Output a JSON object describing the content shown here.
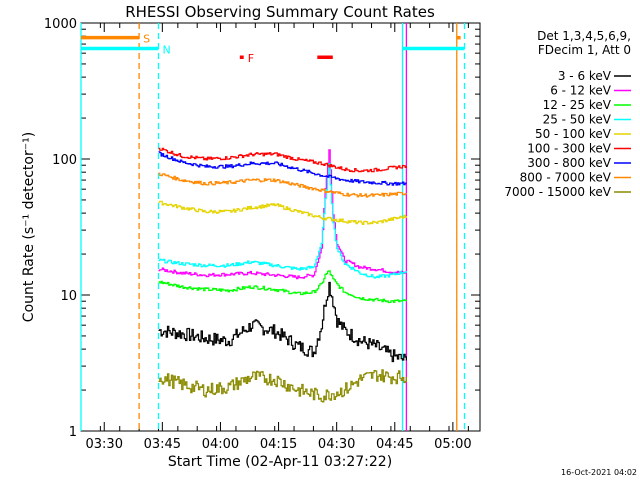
{
  "chart_data": {
    "type": "line",
    "title": "RHESSI Observing Summary Count Rates",
    "xlabel": "Start Time (02-Apr-11 03:27:22)",
    "ylabel": "Count Rate (s⁻¹ detector⁻¹)",
    "y_scale": "log",
    "ylim": [
      1,
      1000
    ],
    "xlim": [
      "03:24",
      "05:07"
    ],
    "x_ticks": [
      "03:30",
      "03:45",
      "04:00",
      "04:15",
      "04:30",
      "04:45",
      "05:00"
    ],
    "y_ticks": [
      {
        "value": 1,
        "label": "1"
      },
      {
        "value": 10,
        "label": "10"
      },
      {
        "value": 100,
        "label": "100"
      },
      {
        "value": 1000,
        "label": "1000"
      }
    ],
    "legend_header": [
      "Det 1,3,4,5,6,9,",
      "FDecim 1, Att 0"
    ],
    "legend_position": "right",
    "data_interval": [
      "03:44",
      "04:48"
    ],
    "series": [
      {
        "name": "3 - 6 keV",
        "color": "#000000",
        "x": [
          "03:44",
          "03:50",
          "03:56",
          "04:02",
          "04:08",
          "04:14",
          "04:20",
          "04:24",
          "04:26",
          "04:27",
          "04:28",
          "04:29",
          "04:30",
          "04:32",
          "04:36",
          "04:40",
          "04:44",
          "04:48"
        ],
        "y": [
          5.5,
          5.2,
          4.8,
          4.6,
          6.0,
          5.4,
          4.2,
          3.8,
          6.0,
          9.0,
          12.0,
          9.0,
          6.5,
          5.5,
          4.6,
          4.2,
          3.6,
          3.3
        ]
      },
      {
        "name": "6 - 12 keV",
        "color": "#ff00ff",
        "x": [
          "03:44",
          "03:50",
          "03:56",
          "04:02",
          "04:08",
          "04:14",
          "04:20",
          "04:24",
          "04:26",
          "04:27",
          "04:28",
          "04:29",
          "04:30",
          "04:32",
          "04:36",
          "04:40",
          "04:44",
          "04:48"
        ],
        "y": [
          15.5,
          14.5,
          14.0,
          14.2,
          14.5,
          14.0,
          13.5,
          14.0,
          22.0,
          60.0,
          120.0,
          40.0,
          24.0,
          18.0,
          16.0,
          15.5,
          14.8,
          14.5
        ]
      },
      {
        "name": "12 - 25 keV",
        "color": "#00ff00",
        "x": [
          "03:44",
          "03:50",
          "03:56",
          "04:02",
          "04:08",
          "04:14",
          "04:20",
          "04:24",
          "04:26",
          "04:27",
          "04:28",
          "04:29",
          "04:30",
          "04:32",
          "04:36",
          "04:40",
          "04:44",
          "04:48"
        ],
        "y": [
          12.5,
          11.5,
          11.0,
          10.8,
          11.5,
          11.0,
          10.2,
          10.5,
          12.0,
          14.0,
          15.0,
          13.0,
          12.0,
          10.5,
          9.5,
          9.2,
          9.0,
          9.0
        ]
      },
      {
        "name": "25 - 50 keV",
        "color": "#00ffff",
        "x": [
          "03:44",
          "03:50",
          "03:56",
          "04:02",
          "04:08",
          "04:14",
          "04:20",
          "04:24",
          "04:26",
          "04:27",
          "04:28",
          "04:29",
          "04:30",
          "04:32",
          "04:36",
          "04:40",
          "04:44",
          "04:48"
        ],
        "y": [
          18.0,
          17.0,
          16.5,
          16.5,
          17.5,
          16.5,
          15.5,
          16.0,
          24.0,
          50.0,
          90.0,
          35.0,
          22.0,
          17.0,
          14.5,
          13.5,
          14.0,
          15.0
        ]
      },
      {
        "name": "50 - 100 keV",
        "color": "#e6d400",
        "x": [
          "03:44",
          "03:50",
          "03:56",
          "04:02",
          "04:08",
          "04:14",
          "04:20",
          "04:26",
          "04:32",
          "04:36",
          "04:40",
          "04:44",
          "04:48"
        ],
        "y": [
          48,
          44,
          41,
          41,
          44,
          46,
          41,
          37,
          35,
          34,
          34,
          36,
          38
        ]
      },
      {
        "name": "100 - 300 keV",
        "color": "#ff0000",
        "x": [
          "03:44",
          "03:50",
          "03:56",
          "04:02",
          "04:08",
          "04:14",
          "04:20",
          "04:26",
          "04:32",
          "04:36",
          "04:40",
          "04:44",
          "04:48"
        ],
        "y": [
          120,
          105,
          100,
          102,
          108,
          109,
          99,
          93,
          84,
          82,
          83,
          86,
          89
        ]
      },
      {
        "name": "300 - 800 keV",
        "color": "#0000ff",
        "x": [
          "03:44",
          "03:50",
          "03:56",
          "04:02",
          "04:08",
          "04:14",
          "04:20",
          "04:26",
          "04:32",
          "04:36",
          "04:40",
          "04:44",
          "04:48"
        ],
        "y": [
          110,
          95,
          88,
          88,
          93,
          93,
          84,
          76,
          70,
          68,
          67,
          66,
          66
        ]
      },
      {
        "name": "800 - 7000 keV",
        "color": "#ff8800",
        "x": [
          "03:44",
          "03:50",
          "03:56",
          "04:02",
          "04:08",
          "04:14",
          "04:20",
          "04:26",
          "04:32",
          "04:36",
          "04:40",
          "04:44",
          "04:48"
        ],
        "y": [
          78,
          70,
          66,
          67,
          70,
          70,
          64,
          59,
          55,
          54,
          54,
          55,
          56
        ]
      },
      {
        "name": "7000 - 15000 keV",
        "color": "#8b8b00",
        "x": [
          "03:44",
          "03:50",
          "03:56",
          "04:02",
          "04:08",
          "04:14",
          "04:20",
          "04:26",
          "04:32",
          "04:36",
          "04:40",
          "04:44",
          "04:48"
        ],
        "y": [
          2.5,
          2.2,
          2.0,
          2.1,
          2.5,
          2.4,
          2.0,
          1.8,
          2.0,
          2.4,
          2.6,
          2.5,
          2.5
        ]
      }
    ],
    "vertical_markers": [
      {
        "time": "03:24",
        "color": "#00ffff",
        "style": "solid"
      },
      {
        "time": "03:39",
        "color": "#ff8800",
        "style": "dashed"
      },
      {
        "time": "03:44",
        "color": "#00ffff",
        "style": "dashed"
      },
      {
        "time": "04:47",
        "color": "#00ffff",
        "style": "solid"
      },
      {
        "time": "04:48",
        "color": "#ff00ff",
        "style": "solid"
      },
      {
        "time": "05:01",
        "color": "#ff8800",
        "style": "solid"
      },
      {
        "time": "05:03",
        "color": "#00ffff",
        "style": "dashed"
      }
    ],
    "status_bars": [
      {
        "label": "S",
        "label_color": "#ff8800",
        "color": "#ff8800",
        "y": 780,
        "segments": [
          [
            "03:24",
            "03:39"
          ],
          [
            "05:01",
            "05:02"
          ]
        ]
      },
      {
        "label": "N",
        "label_color": "#00ffff",
        "color": "#00ffff",
        "y": 650,
        "segments": [
          [
            "03:24",
            "03:44"
          ],
          [
            "04:47",
            "05:03"
          ]
        ]
      },
      {
        "label": "F",
        "label_color": "#ff0000",
        "color": "#ff0000",
        "y": 560,
        "segments": [
          [
            "04:05",
            "04:06"
          ],
          [
            "04:25",
            "04:29"
          ]
        ]
      }
    ],
    "footer_date": "16-Oct-2021 04:02"
  }
}
